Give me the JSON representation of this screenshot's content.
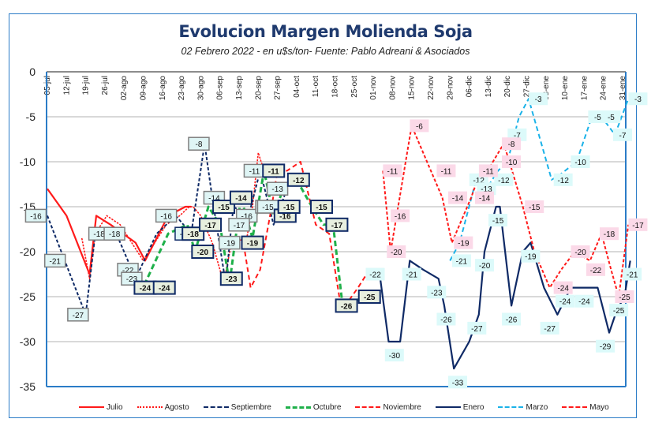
{
  "chart_data": {
    "type": "line",
    "title": "Evolucion Margen Molienda Soja",
    "subtitle": "02 Febrero  2022 - en u$s/ton- Fuente: Pablo Adreani & Asociados",
    "xlabel": "",
    "ylabel": "",
    "ylim": [
      -35,
      0
    ],
    "yticks": [
      "0",
      "-5",
      "-10",
      "-15",
      "-20",
      "-25",
      "-30",
      "-35"
    ],
    "ytick_values": [
      0,
      -5,
      -10,
      -15,
      -20,
      -25,
      -30,
      -35
    ],
    "grid": true,
    "legend_position": "bottom",
    "categories": [
      "05-jul",
      "12-jul",
      "19-jul",
      "26-jul",
      "02-ago",
      "09-ago",
      "16-ago",
      "23-ago",
      "30-ago",
      "06-sep",
      "13-sep",
      "20-sep",
      "27-sep",
      "04-oct",
      "11-oct",
      "18-oct",
      "25-oct",
      "01-nov",
      "08-nov",
      "15-nov",
      "22-nov",
      "29-nov",
      "06-dic",
      "13-dic",
      "20-dic",
      "27-dic",
      "03-ene",
      "10-ene",
      "17-ene",
      "24-ene",
      "31-ene"
    ],
    "series": [
      {
        "name": "Julio",
        "color": "#ff1a1a",
        "style": "solid",
        "x": [
          0,
          1,
          2.2,
          2.55,
          3.3,
          4.6,
          5.1,
          6.3,
          7.2,
          7.5
        ],
        "values": [
          -13,
          -16,
          -22.5,
          -16,
          -17,
          -19,
          -21,
          -16,
          -15,
          -15
        ],
        "labels": []
      },
      {
        "name": "Agosto",
        "color": "#ff1a1a",
        "style": "dot",
        "x": [
          1.8,
          2.2,
          2.5,
          3.1,
          3.8,
          4.4,
          5,
          5.6,
          6.2,
          6.9,
          7.4,
          7.6,
          8.0,
          8.6,
          9.2,
          9.6,
          10.4,
          10.7,
          11.0,
          11.3
        ],
        "values": [
          -18.5,
          -23,
          -18,
          -16,
          -17,
          -19,
          -21,
          -19,
          -17,
          -16,
          -15,
          -15,
          -16,
          -19,
          -23.5,
          -19,
          -18.5,
          -15,
          -9,
          -11
        ],
        "labels": [
          {
            "x": 2.7,
            "v": -18,
            "text": "-18"
          },
          {
            "x": 3.5,
            "v": -18,
            "text": "-18"
          },
          {
            "x": 6.2,
            "v": -16,
            "text": "-16"
          },
          {
            "x": 7.2,
            "v": -18,
            "text": "-18"
          },
          {
            "x": 9.5,
            "v": -19,
            "text": "-19"
          },
          {
            "x": 10.4,
            "v": -16,
            "text": "-16"
          },
          {
            "x": 11.4,
            "v": -15,
            "text": "-15"
          }
        ]
      },
      {
        "name": "Septiembre",
        "color": "#0f2a66",
        "style": "dash",
        "x": [
          0,
          2,
          2.5,
          3.1,
          3.6,
          4.6,
          5.7,
          6.7,
          7.5,
          8.2,
          8.6,
          9.3,
          9.7,
          10.5,
          11.1,
          11.8,
          12.5
        ],
        "values": [
          -16,
          -27,
          -18,
          -18,
          -18,
          -23,
          -18,
          -16,
          -18,
          -8,
          -14,
          -23.5,
          -15,
          -16,
          -11,
          -17,
          -13
        ],
        "labels": [
          {
            "x": -0.6,
            "v": -16,
            "text": "-16"
          },
          {
            "x": 0.4,
            "v": -21,
            "text": "-21"
          },
          {
            "x": 1.6,
            "v": -27,
            "text": "-27"
          },
          {
            "x": 4.2,
            "v": -22,
            "text": "-22"
          },
          {
            "x": 4.4,
            "v": -23,
            "text": "-23"
          },
          {
            "x": 7.9,
            "v": -8,
            "text": "-8"
          },
          {
            "x": 8.7,
            "v": -14,
            "text": "-14"
          },
          {
            "x": 10.0,
            "v": -17,
            "text": "-17"
          },
          {
            "x": 10.8,
            "v": -11,
            "text": "-11"
          },
          {
            "x": 11.5,
            "v": -15,
            "text": "-15"
          },
          {
            "x": 12.0,
            "v": -13,
            "text": "-13"
          }
        ]
      },
      {
        "name": "Octubre",
        "color": "#1fb04a",
        "style": "dashthick",
        "x": [
          4.6,
          5.1,
          6.3,
          7.3,
          7.7,
          8.4,
          9.0,
          9.5,
          10.1,
          10.7,
          11.3,
          11.8,
          12.3,
          13.0,
          13.8,
          14.4,
          14.9,
          15.4,
          16.0,
          16.6
        ],
        "values": [
          -24,
          -23.5,
          -18,
          -17,
          -20,
          -15,
          -17,
          -23.5,
          -14,
          -18.5,
          -11,
          -16,
          -13,
          -12,
          -15,
          -17,
          -17,
          -26,
          -25.5,
          -25
        ],
        "labels": [
          {
            "x": 5.1,
            "v": -24,
            "text": "-24",
            "bold": true
          },
          {
            "x": 6.1,
            "v": -24,
            "text": "-24",
            "bold": true
          },
          {
            "x": 7.6,
            "v": -18,
            "text": "-18",
            "bold": true
          },
          {
            "x": 8.5,
            "v": -17,
            "text": "-17",
            "bold": true
          },
          {
            "x": 8.1,
            "v": -20,
            "text": "-20",
            "bold": true
          },
          {
            "x": 9.2,
            "v": -15,
            "text": "-15",
            "bold": true
          },
          {
            "x": 9.6,
            "v": -23,
            "text": "-23",
            "bold": true
          },
          {
            "x": 10.1,
            "v": -14,
            "text": "-14",
            "bold": true
          },
          {
            "x": 10.7,
            "v": -19,
            "text": "-19",
            "bold": true
          },
          {
            "x": 11.8,
            "v": -11,
            "text": "-11",
            "bold": true
          },
          {
            "x": 12.4,
            "v": -16,
            "text": "-16",
            "bold": true
          },
          {
            "x": 12.6,
            "v": -15,
            "text": "-15",
            "bold": true
          },
          {
            "x": 13.1,
            "v": -12,
            "text": "-12",
            "bold": true
          },
          {
            "x": 14.3,
            "v": -15,
            "text": "-15",
            "bold": true
          },
          {
            "x": 15.1,
            "v": -17,
            "text": "-17",
            "bold": true
          },
          {
            "x": 15.6,
            "v": -26,
            "text": "-26",
            "bold": true
          },
          {
            "x": 16.8,
            "v": -25,
            "text": "-25",
            "bold": true
          }
        ]
      },
      {
        "name": "Noviembre",
        "color": "#ff1a1a",
        "style": "dashlong",
        "x": [
          10.3,
          10.6,
          11.1,
          11.7,
          12.0,
          12.5,
          13.2,
          14.0,
          14.7,
          15.3,
          15.7,
          16.2,
          16.8
        ],
        "values": [
          -20,
          -24,
          -22,
          -15,
          -11,
          -11,
          -10,
          -17,
          -18,
          -26,
          -25.5,
          -24,
          -22
        ],
        "labels": []
      },
      {
        "name": "Enero",
        "color": "#0f2a66",
        "style": "solid",
        "x": [
          17.3,
          17.8,
          18.4,
          18.9,
          19.6,
          20.4,
          20.7,
          21.2,
          22.0,
          22.5,
          22.8,
          23.4,
          23.6,
          24.2,
          24.8,
          25.2,
          25.9,
          26.6,
          27.3,
          28.1,
          28.4,
          28.7,
          29.3,
          29.7,
          30.1,
          30.4
        ],
        "values": [
          -22,
          -30,
          -30,
          -21,
          -22,
          -23,
          -26,
          -33,
          -30,
          -27,
          -20,
          -15,
          -15,
          -26,
          -20,
          -19,
          -24,
          -27,
          -24,
          -24,
          -24,
          -24,
          -29,
          -26.5,
          -25,
          -21
        ],
        "labels": [
          {
            "x": 17.1,
            "v": -22.5,
            "text": "-22"
          },
          {
            "x": 18.1,
            "v": -31.5,
            "text": "-30"
          },
          {
            "x": 19.0,
            "v": -22.5,
            "text": "-21"
          },
          {
            "x": 20.3,
            "v": -24.5,
            "text": "-23"
          },
          {
            "x": 20.8,
            "v": -27.5,
            "text": "-26"
          },
          {
            "x": 21.4,
            "v": -34.5,
            "text": "-33"
          },
          {
            "x": 22.4,
            "v": -28.5,
            "text": "-27"
          },
          {
            "x": 22.8,
            "v": -21.5,
            "text": "-20"
          },
          {
            "x": 23.5,
            "v": -16.5,
            "text": "-15"
          },
          {
            "x": 24.2,
            "v": -27.5,
            "text": "-26"
          },
          {
            "x": 25.2,
            "v": -20.5,
            "text": "-19"
          },
          {
            "x": 26.2,
            "v": -28.5,
            "text": "-27"
          },
          {
            "x": 27.0,
            "v": -25.5,
            "text": "-24"
          },
          {
            "x": 28.0,
            "v": -25.5,
            "text": "-24"
          },
          {
            "x": 29.1,
            "v": -30.5,
            "text": "-29"
          },
          {
            "x": 29.8,
            "v": -26.5,
            "text": "-25"
          },
          {
            "x": 30.5,
            "v": -22.5,
            "text": "-21"
          }
        ]
      },
      {
        "name": "Marzo",
        "color": "#1ab2e8",
        "style": "dashlong",
        "x": [
          21.0,
          21.5,
          22.3,
          22.6,
          22.9,
          23.5,
          24.0,
          24.6,
          25.1,
          26.3,
          26.7,
          27.6,
          28.4,
          28.9,
          29.6,
          30.3
        ],
        "values": [
          -21,
          -19,
          -12.5,
          -12,
          -13,
          -11,
          -10,
          -5,
          -3,
          -12,
          -11.5,
          -10,
          -5,
          -5,
          -7,
          -3
        ],
        "labels": [
          {
            "x": 21.6,
            "v": -21,
            "text": "-21"
          },
          {
            "x": 22.5,
            "v": -12,
            "text": "-12"
          },
          {
            "x": 22.9,
            "v": -13,
            "text": "-13"
          },
          {
            "x": 23.8,
            "v": -12,
            "text": "-12"
          },
          {
            "x": 24.5,
            "v": -7,
            "text": "-7"
          },
          {
            "x": 25.6,
            "v": -3,
            "text": "-3"
          },
          {
            "x": 26.9,
            "v": -12,
            "text": "-12"
          },
          {
            "x": 27.8,
            "v": -10,
            "text": "-10"
          },
          {
            "x": 28.7,
            "v": -5,
            "text": "-5"
          },
          {
            "x": 29.4,
            "v": -5,
            "text": "-5"
          },
          {
            "x": 30.0,
            "v": -7,
            "text": "-7"
          },
          {
            "x": 30.8,
            "v": -3,
            "text": "-3"
          }
        ]
      },
      {
        "name": "Mayo",
        "color": "#ff1a1a",
        "style": "dashmed",
        "x": [
          17.5,
          17.9,
          19.0,
          20.0,
          20.6,
          21.1,
          22.1,
          22.6,
          23.1,
          23.8,
          24.1,
          24.8,
          25.4,
          26.2,
          26.8,
          27.5,
          28.3,
          28.9,
          29.4,
          29.8,
          30.3
        ],
        "values": [
          -11,
          -20,
          -6,
          -11,
          -14,
          -19,
          -14,
          -11,
          -10.5,
          -8,
          -10,
          -15,
          -20,
          -24,
          -22,
          -20,
          -21,
          -18,
          -22,
          -25,
          -17
        ],
        "labels": [
          {
            "x": 18.0,
            "v": -11,
            "text": "-11"
          },
          {
            "x": 18.2,
            "v": -20,
            "text": "-20"
          },
          {
            "x": 18.4,
            "v": -16,
            "text": "-16"
          },
          {
            "x": 19.4,
            "v": -6,
            "text": "-6"
          },
          {
            "x": 20.8,
            "v": -11,
            "text": "-11"
          },
          {
            "x": 21.7,
            "v": -19,
            "text": "-19"
          },
          {
            "x": 21.4,
            "v": -14,
            "text": "-14"
          },
          {
            "x": 22.8,
            "v": -14,
            "text": "-14"
          },
          {
            "x": 23.0,
            "v": -11,
            "text": "-11"
          },
          {
            "x": 24.2,
            "v": -8,
            "text": "-8"
          },
          {
            "x": 24.2,
            "v": -10,
            "text": "-10"
          },
          {
            "x": 25.4,
            "v": -15,
            "text": "-15"
          },
          {
            "x": 26.9,
            "v": -24,
            "text": "-24"
          },
          {
            "x": 27.8,
            "v": -20,
            "text": "-20"
          },
          {
            "x": 28.6,
            "v": -22,
            "text": "-22"
          },
          {
            "x": 29.3,
            "v": -18,
            "text": "-18"
          },
          {
            "x": 30.1,
            "v": -25,
            "text": "-25"
          },
          {
            "x": 30.8,
            "v": -17,
            "text": "-17"
          }
        ]
      }
    ]
  }
}
